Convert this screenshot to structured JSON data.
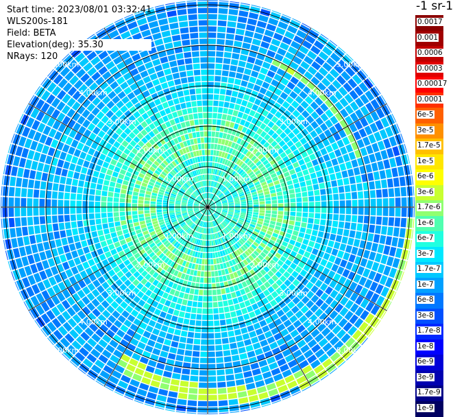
{
  "info": {
    "start_time": "Start time: 2023/08/01 03:32:41",
    "instrument": "WLS200s-181",
    "field": "Field: BETA",
    "elevation": "Elevation(deg): 35.30",
    "nrays": "NRays: 120"
  },
  "colorbar": {
    "unit": "-1 sr-1",
    "labels": [
      "0.0017",
      "0.001",
      "0.0006",
      "0.0003",
      "0.00017",
      "0.0001",
      "6e-5",
      "3e-5",
      "1.7e-5",
      "1e-5",
      "6e-6",
      "3e-6",
      "1.7e-6",
      "1e-6",
      "6e-7",
      "3e-7",
      "1.7e-7",
      "1e-7",
      "6e-8",
      "3e-8",
      "1.7e-8",
      "1e-8",
      "6e-9",
      "3e-9",
      "1.7e-9",
      "1e-9"
    ],
    "colors": [
      "#8b0000",
      "#a00000",
      "#c00000",
      "#e00000",
      "#ff0000",
      "#ff3000",
      "#ff6000",
      "#ff9000",
      "#ffc000",
      "#ffe600",
      "#ffff00",
      "#c8ff30",
      "#90ff70",
      "#50ffb0",
      "#20ffe0",
      "#00e8ff",
      "#00c8ff",
      "#00a0ff",
      "#0078ff",
      "#0050ff",
      "#0028ff",
      "#0000ff",
      "#0000d8",
      "#0000b0",
      "#000088",
      "#000060"
    ]
  },
  "plot": {
    "range_rings": [
      "1.00km",
      "2.00km",
      "3.00km",
      "4.00km",
      "5.00km"
    ],
    "n_rays": 120
  }
}
